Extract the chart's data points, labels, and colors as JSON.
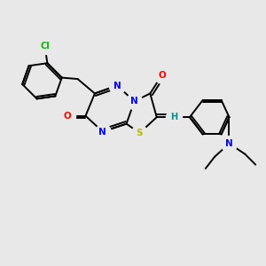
{
  "bg_color": "#e8e8e8",
  "atom_colors": {
    "N": "#0000ff",
    "S": "#b8b800",
    "O": "#ff0000",
    "Cl": "#00bb00",
    "C": "#000000",
    "H": "#009090"
  },
  "bond_color": "#000000",
  "bond_width": 1.4,
  "figsize": [
    3.0,
    3.0
  ],
  "dpi": 100
}
